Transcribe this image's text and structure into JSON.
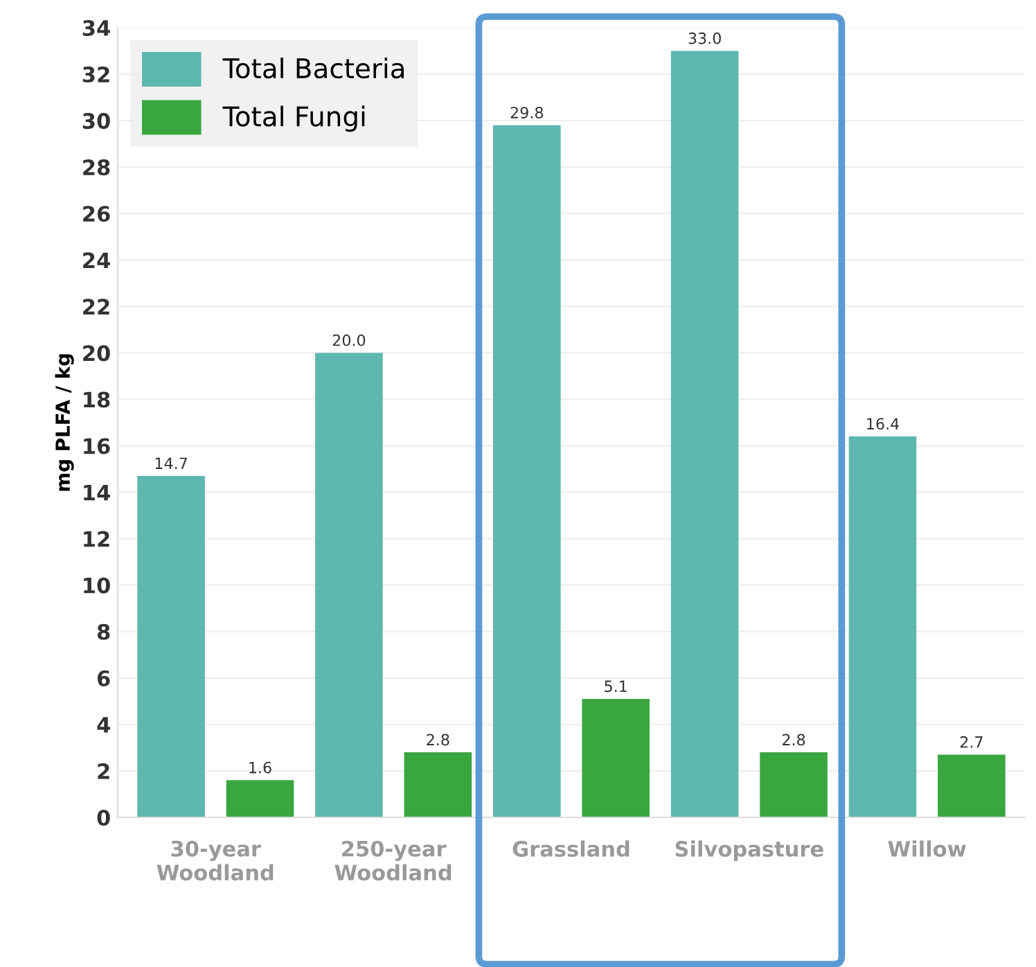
{
  "chart_data": {
    "type": "bar",
    "ylabel": "mg PLFA / kg",
    "categories": [
      "30-year\nWoodland",
      "250-year\nWoodland",
      "Grassland",
      "Silvopasture",
      "Willow"
    ],
    "series": [
      {
        "name": "Total Bacteria",
        "color": "#5fb8b0",
        "values": [
          14.7,
          20.0,
          29.8,
          33.0,
          16.4
        ],
        "value_labels": [
          "14.7",
          "20.0",
          "29.8",
          "33.0",
          "16.4"
        ]
      },
      {
        "name": "Total Fungi",
        "color": "#3aa640",
        "values": [
          1.6,
          2.8,
          5.1,
          2.8,
          2.7
        ],
        "value_labels": [
          "1.6",
          "2.8",
          "5.1",
          "2.8",
          "2.7"
        ]
      }
    ],
    "ylim": [
      0,
      34
    ],
    "yticks": [
      0,
      2,
      4,
      6,
      8,
      10,
      12,
      14,
      16,
      18,
      20,
      22,
      24,
      26,
      28,
      30,
      32,
      34
    ],
    "grid": "y",
    "legend": "top left"
  }
}
